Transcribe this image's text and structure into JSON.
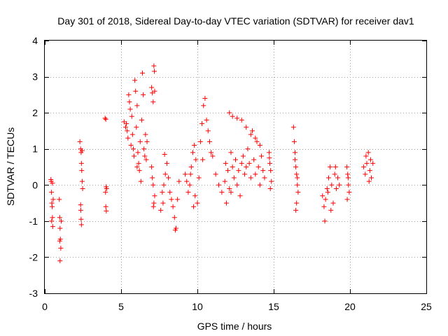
{
  "chart_data": {
    "type": "scatter",
    "title": "Day 301 of 2018, Sidereal Day-to-day VTEC variation (SDTVAR) for receiver dav1",
    "xlabel": "GPS time / hours",
    "ylabel": "SDTVAR / TECUs",
    "xlim": [
      0,
      25
    ],
    "ylim": [
      -3,
      4
    ],
    "xticks": [
      0,
      5,
      10,
      15,
      20,
      25
    ],
    "yticks": [
      -3,
      -2,
      -1,
      0,
      1,
      2,
      3,
      4
    ],
    "xtick_labels": [
      "0",
      "5",
      "10",
      "15",
      "20",
      "25"
    ],
    "ytick_labels": [
      "-3",
      "-2",
      "-1",
      "0",
      "1",
      "2",
      "3",
      "4"
    ],
    "grid": true,
    "legend": "none",
    "marker": "plus",
    "series_color": "#ff0000",
    "series": [
      {
        "name": "SDTVAR",
        "points": [
          [
            0.4,
            0.15
          ],
          [
            0.42,
            0.1
          ],
          [
            0.44,
            -0.2
          ],
          [
            0.46,
            -0.5
          ],
          [
            0.48,
            -0.6
          ],
          [
            0.5,
            -0.9
          ],
          [
            0.52,
            -1.15
          ],
          [
            0.5,
            0.05
          ],
          [
            0.55,
            -0.4
          ],
          [
            0.45,
            -1.0
          ],
          [
            0.95,
            -0.4
          ],
          [
            0.98,
            -0.9
          ],
          [
            1.0,
            -1.2
          ],
          [
            1.02,
            -1.5
          ],
          [
            1.05,
            -1.75
          ],
          [
            1.0,
            -2.1
          ],
          [
            1.08,
            -1.0
          ],
          [
            0.98,
            -1.55
          ],
          [
            2.3,
            1.2
          ],
          [
            2.35,
            1.0
          ],
          [
            2.38,
            0.9
          ],
          [
            2.4,
            0.6
          ],
          [
            2.42,
            0.4
          ],
          [
            2.45,
            0.1
          ],
          [
            2.48,
            -0.1
          ],
          [
            2.36,
            -0.7
          ],
          [
            2.38,
            -0.95
          ],
          [
            2.4,
            -1.1
          ],
          [
            2.45,
            0.95
          ],
          [
            2.35,
            -0.55
          ],
          [
            3.95,
            1.85
          ],
          [
            4.0,
            1.82
          ],
          [
            4.02,
            -0.05
          ],
          [
            4.05,
            -0.1
          ],
          [
            4.0,
            -0.6
          ],
          [
            4.03,
            -0.72
          ],
          [
            3.98,
            -0.2
          ],
          [
            5.2,
            1.75
          ],
          [
            5.3,
            1.6
          ],
          [
            5.4,
            1.5
          ],
          [
            5.5,
            2.5
          ],
          [
            5.55,
            2.3
          ],
          [
            5.6,
            2.1
          ],
          [
            5.7,
            1.9
          ],
          [
            5.75,
            1.4
          ],
          [
            5.8,
            1.0
          ],
          [
            5.85,
            0.8
          ],
          [
            5.9,
            2.9
          ],
          [
            5.95,
            2.6
          ],
          [
            6.0,
            1.6
          ],
          [
            6.05,
            2.2
          ],
          [
            6.1,
            0.9
          ],
          [
            6.15,
            0.6
          ],
          [
            6.2,
            0.4
          ],
          [
            6.25,
            1.2
          ],
          [
            6.3,
            0.1
          ],
          [
            6.35,
            1.8
          ],
          [
            6.4,
            3.1
          ],
          [
            6.45,
            2.5
          ],
          [
            6.5,
            1.0
          ],
          [
            6.55,
            0.8
          ],
          [
            6.6,
            1.4
          ],
          [
            6.65,
            0.7
          ],
          [
            6.7,
            1.2
          ],
          [
            5.45,
            1.3
          ],
          [
            5.65,
            1.1
          ],
          [
            6.05,
            0.5
          ],
          [
            5.35,
            1.7
          ],
          [
            7.0,
            2.7
          ],
          [
            7.05,
            2.55
          ],
          [
            7.1,
            2.3
          ],
          [
            7.15,
            3.3
          ],
          [
            7.18,
            3.15
          ],
          [
            7.2,
            2.6
          ],
          [
            7.0,
            0.5
          ],
          [
            7.05,
            0.2
          ],
          [
            7.1,
            0.0
          ],
          [
            7.15,
            -0.5
          ],
          [
            7.2,
            -0.3
          ],
          [
            7.12,
            -0.6
          ],
          [
            7.6,
            -0.7
          ],
          [
            7.7,
            -0.2
          ],
          [
            7.8,
            0.0
          ],
          [
            7.9,
            0.3
          ],
          [
            8.0,
            0.6
          ],
          [
            7.85,
            0.85
          ],
          [
            8.1,
            0.2
          ],
          [
            8.2,
            -0.2
          ],
          [
            8.3,
            -0.4
          ],
          [
            8.4,
            -0.6
          ],
          [
            8.5,
            -0.9
          ],
          [
            8.6,
            -1.2
          ],
          [
            8.7,
            -0.4
          ],
          [
            8.8,
            0.1
          ],
          [
            8.55,
            -1.25
          ],
          [
            7.75,
            -0.5
          ],
          [
            9.2,
            0.3
          ],
          [
            9.3,
            0.1
          ],
          [
            9.4,
            -0.2
          ],
          [
            9.5,
            0.0
          ],
          [
            9.6,
            0.5
          ],
          [
            9.7,
            0.9
          ],
          [
            9.8,
            1.1
          ],
          [
            9.9,
            0.7
          ],
          [
            10.0,
            -0.5
          ],
          [
            10.1,
            0.2
          ],
          [
            10.2,
            1.2
          ],
          [
            10.3,
            1.7
          ],
          [
            10.4,
            2.2
          ],
          [
            10.5,
            2.4
          ],
          [
            10.6,
            1.8
          ],
          [
            10.7,
            1.5
          ],
          [
            10.8,
            1.2
          ],
          [
            10.9,
            0.9
          ],
          [
            9.75,
            -0.6
          ],
          [
            9.55,
            0.3
          ],
          [
            10.35,
            0.7
          ],
          [
            9.85,
            -0.3
          ],
          [
            11.0,
            0.8
          ],
          [
            11.2,
            0.3
          ],
          [
            11.4,
            0.0
          ],
          [
            11.6,
            -0.2
          ],
          [
            11.8,
            0.1
          ],
          [
            11.85,
            0.6
          ],
          [
            12.0,
            0.4
          ],
          [
            12.1,
            -0.1
          ],
          [
            12.2,
            0.9
          ],
          [
            12.3,
            0.5
          ],
          [
            12.4,
            0.2
          ],
          [
            12.5,
            0.7
          ],
          [
            12.6,
            0.0
          ],
          [
            12.7,
            0.4
          ],
          [
            12.8,
            -0.3
          ],
          [
            12.9,
            0.6
          ],
          [
            13.0,
            0.8
          ],
          [
            13.1,
            0.3
          ],
          [
            13.2,
            0.5
          ],
          [
            13.3,
            1.0
          ],
          [
            13.4,
            0.6
          ],
          [
            13.5,
            0.2
          ],
          [
            13.6,
            1.5
          ],
          [
            13.7,
            0.7
          ],
          [
            13.8,
            0.3
          ],
          [
            13.9,
            1.2
          ],
          [
            14.0,
            0.5
          ],
          [
            14.1,
            0.0
          ],
          [
            14.2,
            0.8
          ],
          [
            14.3,
            0.4
          ],
          [
            12.1,
            2.0
          ],
          [
            12.3,
            1.9
          ],
          [
            12.6,
            1.85
          ],
          [
            12.9,
            1.8
          ],
          [
            13.2,
            1.6
          ],
          [
            13.5,
            1.4
          ],
          [
            13.8,
            1.3
          ],
          [
            14.1,
            1.1
          ],
          [
            11.9,
            -0.5
          ],
          [
            12.2,
            -0.2
          ],
          [
            14.4,
            0.2
          ],
          [
            14.7,
            0.9
          ],
          [
            14.75,
            0.6
          ],
          [
            14.8,
            0.4
          ],
          [
            14.85,
            0.1
          ],
          [
            14.78,
            -0.1
          ],
          [
            14.72,
            0.75
          ],
          [
            16.3,
            1.6
          ],
          [
            16.35,
            1.2
          ],
          [
            16.4,
            0.9
          ],
          [
            16.45,
            0.5
          ],
          [
            16.5,
            0.3
          ],
          [
            16.55,
            0.0
          ],
          [
            16.6,
            -0.2
          ],
          [
            16.5,
            -0.5
          ],
          [
            16.45,
            -0.7
          ],
          [
            16.4,
            0.7
          ],
          [
            16.55,
            0.2
          ],
          [
            18.2,
            -0.3
          ],
          [
            18.3,
            -0.6
          ],
          [
            18.35,
            -1.0
          ],
          [
            18.4,
            -0.4
          ],
          [
            18.5,
            -0.1
          ],
          [
            18.6,
            0.2
          ],
          [
            18.7,
            0.5
          ],
          [
            18.8,
            0.0
          ],
          [
            18.9,
            -0.5
          ],
          [
            19.0,
            0.3
          ],
          [
            19.1,
            -0.1
          ],
          [
            19.2,
            0.2
          ],
          [
            19.3,
            0.0
          ],
          [
            18.75,
            -0.7
          ],
          [
            18.55,
            -0.2
          ],
          [
            19.05,
            0.5
          ],
          [
            19.8,
            0.5
          ],
          [
            19.85,
            0.3
          ],
          [
            19.9,
            0.0
          ],
          [
            19.95,
            -0.2
          ],
          [
            19.82,
            -0.4
          ],
          [
            19.88,
            0.2
          ],
          [
            20.9,
            0.5
          ],
          [
            21.0,
            0.3
          ],
          [
            21.1,
            0.6
          ],
          [
            21.2,
            0.9
          ],
          [
            21.3,
            0.4
          ],
          [
            21.4,
            0.2
          ],
          [
            21.5,
            0.6
          ],
          [
            21.25,
            0.1
          ],
          [
            21.05,
            0.8
          ],
          [
            21.35,
            0.7
          ]
        ]
      }
    ]
  }
}
